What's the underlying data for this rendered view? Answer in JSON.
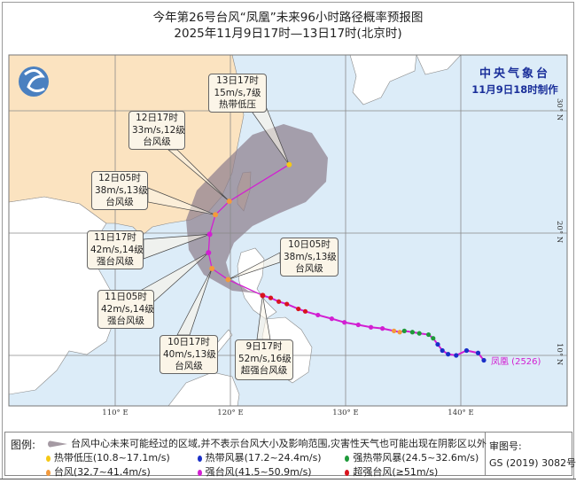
{
  "title": {
    "line1": "今年第26号台风“凤凰”未来96小时路径概率预报图",
    "line2": "2025年11月9日17时—13日17时(北京时)"
  },
  "agency": {
    "name": "中央气象台",
    "issued": "11月9日18时制作"
  },
  "storm_name": "凤凰 (2526)",
  "axes": {
    "lon_labels": [
      {
        "lon": 110,
        "text": "110° E"
      },
      {
        "lon": 120,
        "text": "120° E"
      },
      {
        "lon": 130,
        "text": "130° E"
      },
      {
        "lon": 140,
        "text": "140° E"
      }
    ],
    "lat_labels": [
      {
        "lat": 30,
        "text": "30° N"
      },
      {
        "lat": 20,
        "text": "20° N"
      },
      {
        "lat": 10,
        "text": "10° N"
      }
    ]
  },
  "colors": {
    "TD": "#f5c816",
    "TS": "#1a2fc8",
    "STS": "#1e9a3a",
    "TY": "#f39a3c",
    "STY": "#d21fd2",
    "SuperTY": "#d8141e",
    "track": "#d21fd2",
    "cone": "#8f7f8e",
    "ocean": "#dcecf8",
    "china_land": "#fbe3c0",
    "other_land": "#ffffff",
    "agency_text": "#1a2f9a"
  },
  "past_track": [
    [
      142.0,
      9.6,
      "TS"
    ],
    [
      141.5,
      10.2,
      "TS"
    ],
    [
      140.5,
      10.4,
      "TS"
    ],
    [
      139.6,
      10.0,
      "TS"
    ],
    [
      138.9,
      10.1,
      "TS"
    ],
    [
      138.4,
      10.4,
      "TS"
    ],
    [
      138.0,
      10.9,
      "TS"
    ],
    [
      137.6,
      11.4,
      "STS"
    ],
    [
      137.2,
      11.7,
      "STS"
    ],
    [
      136.4,
      11.8,
      "STS"
    ],
    [
      135.8,
      11.9,
      "STS"
    ],
    [
      135.1,
      12.0,
      "STS"
    ],
    [
      134.7,
      11.9,
      "TY"
    ],
    [
      134.2,
      12.0,
      "TY"
    ],
    [
      133.2,
      12.2,
      "STY"
    ],
    [
      132.2,
      12.3,
      "STY"
    ],
    [
      131.1,
      12.5,
      "STY"
    ],
    [
      129.9,
      12.7,
      "STY"
    ],
    [
      128.8,
      13.0,
      "STY"
    ],
    [
      127.6,
      13.3,
      "STY"
    ],
    [
      126.5,
      13.6,
      "SuperTY"
    ],
    [
      125.9,
      13.8,
      "SuperTY"
    ],
    [
      124.9,
      14.2,
      "SuperTY"
    ],
    [
      124.2,
      14.4,
      "SuperTY"
    ],
    [
      123.5,
      14.7,
      "SuperTY"
    ],
    [
      122.8,
      14.9,
      "SuperTY"
    ]
  ],
  "forecast": [
    {
      "lon": 122.8,
      "lat": 14.9,
      "cat": "SuperTY",
      "time": "9日17时",
      "wind": "52m/s,16级",
      "grade": "超强台风级"
    },
    {
      "lon": 119.8,
      "lat": 16.2,
      "cat": "TY",
      "time": "10日05时",
      "wind": "38m/s,13级",
      "grade": "台风级"
    },
    {
      "lon": 118.4,
      "lat": 17.1,
      "cat": "TY",
      "time": "10日17时",
      "wind": "40m/s,13级",
      "grade": "台风级"
    },
    {
      "lon": 118.1,
      "lat": 18.4,
      "cat": "STY",
      "time": "11日05时",
      "wind": "42m/s,14级",
      "grade": "强台风级"
    },
    {
      "lon": 118.2,
      "lat": 19.9,
      "cat": "STY",
      "time": "11日17时",
      "wind": "42m/s,14级",
      "grade": "强台风级"
    },
    {
      "lon": 118.7,
      "lat": 21.5,
      "cat": "TY",
      "time": "12日05时",
      "wind": "38m/s,13级",
      "grade": "台风级"
    },
    {
      "lon": 119.9,
      "lat": 22.6,
      "cat": "TY",
      "time": "12日17时",
      "wind": "33m/s,12级",
      "grade": "台风级"
    },
    {
      "lon": 125.1,
      "lat": 25.6,
      "cat": "TD",
      "time": "13日17时",
      "wind": "15m/s,7级",
      "grade": "热带低压"
    }
  ],
  "legend": {
    "heading": "图例:",
    "cone_text": "台风中心未来可能经过的区域,并不表示台风大小及影响范围,灾害性天气也可能出现在阴影区以外",
    "items": [
      {
        "cat": "TD",
        "text": "热带低压(10.8~17.1m/s)"
      },
      {
        "cat": "TS",
        "text": "热带风暴(17.2~24.4m/s)"
      },
      {
        "cat": "STS",
        "text": "强热带风暴(24.5~32.6m/s)"
      },
      {
        "cat": "TY",
        "text": "台风(32.7~41.4m/s)"
      },
      {
        "cat": "STY",
        "text": "强台风(41.5~50.9m/s)"
      },
      {
        "cat": "SuperTY",
        "text": "超强台风(≥51m/s)"
      }
    ]
  },
  "review": {
    "label": "审图号:",
    "number": "GS (2019) 3082号"
  }
}
